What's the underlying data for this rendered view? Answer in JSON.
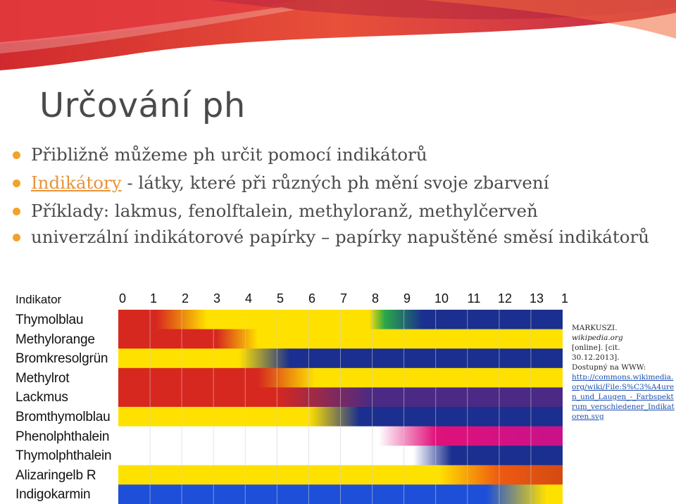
{
  "slide": {
    "title": "Určování ph",
    "bullets": [
      "Přibližně můžeme ph určit pomocí indikátorů",
      "univerzální indikátorové papírky – papírky napuštěné směsí indikátorů"
    ],
    "bullet2": {
      "link": "Indikátory",
      "rest": " - látky, které při různých ph mění svoje zbarvení"
    },
    "bullet3": "Příklady: lakmus, fenolftalein, methyloranž, methylčerveň"
  },
  "chart": {
    "header": "Indikator",
    "ph_ticks": [
      "0",
      "1",
      "2",
      "3",
      "4",
      "5",
      "6",
      "7",
      "8",
      "9",
      "10",
      "11",
      "12",
      "13",
      "1"
    ],
    "indicators": [
      "Thymolblau",
      "Methylorange",
      "Bromkresolgrün",
      "Methylrot",
      "Lackmus",
      "Bromthymolblau",
      "Phenolphthalein",
      "Thymolphthalein",
      "Alizaringelb R",
      "Indigokarmin"
    ],
    "colors": {
      "red": "#d6281f",
      "orange": "#ee5a12",
      "yellow": "#ffe100",
      "blue": "#1a2f8f",
      "purple": "#4a2a85",
      "white": "#ffffff",
      "deep_blue": "#1e4fd8"
    }
  },
  "credit": {
    "author": "MARKUSZI.",
    "source": "wikipedia.org",
    "line3": "[online]. [cit.",
    "line4": "30.12.2013].",
    "line5": "Dostupný na WWW:",
    "url": "http://commons.wikimedia.org/wiki/File:S%C3%A4uren_und_Laugen_-_Farbspektrum_verschiedener_Indikatoren.svg"
  }
}
